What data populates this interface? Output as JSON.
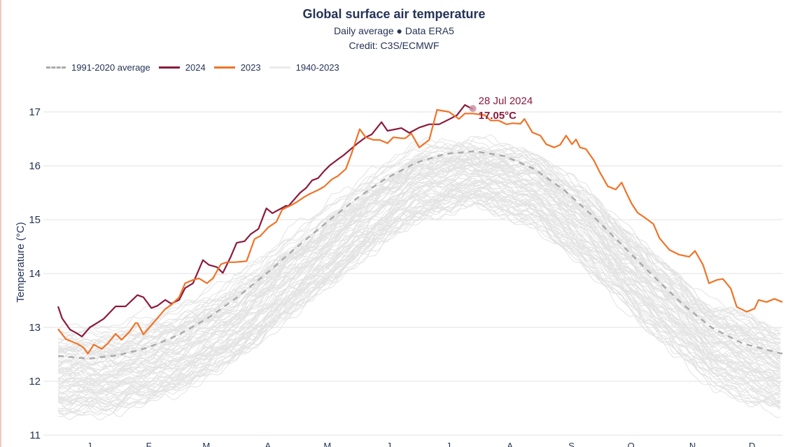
{
  "chart_data": {
    "type": "line",
    "title": "Global surface air temperature",
    "subtitle": "Daily average ● Data ERA5",
    "credit": "Credit: C3S/ECMWF",
    "xlabel": "",
    "ylabel": "Temperature (°C)",
    "ylim": [
      11,
      17.5
    ],
    "yticks": [
      11,
      12,
      13,
      14,
      15,
      16,
      17
    ],
    "xlim": [
      0,
      365
    ],
    "xtick_labels": [
      "J",
      "F",
      "M",
      "A",
      "M",
      "J",
      "J",
      "A",
      "S",
      "O",
      "N",
      "D"
    ],
    "xtick_days": [
      15,
      45,
      74,
      105,
      135,
      166,
      196,
      227,
      258,
      288,
      319,
      349
    ],
    "grid": true,
    "legend_position": "top-left",
    "legend": [
      {
        "label": "1991-2020 average",
        "color": "#aaaaaa",
        "style": "dashed"
      },
      {
        "label": "2024",
        "color": "#8b1a3c",
        "style": "solid"
      },
      {
        "label": "2023",
        "color": "#f07327",
        "style": "solid"
      },
      {
        "label": "1940-2023",
        "color": "#e3e3e3",
        "style": "solid"
      }
    ],
    "annotation": {
      "date": "28 Jul 2024",
      "value": "17.05°C",
      "day": 209,
      "temp": 17.05
    },
    "series": [
      {
        "name": "1991-2020 average",
        "color": "#aaaaaa",
        "x": [
          0,
          15,
          30,
          45,
          60,
          75,
          90,
          105,
          120,
          135,
          150,
          165,
          180,
          195,
          210,
          225,
          240,
          255,
          270,
          285,
          300,
          315,
          330,
          345,
          365
        ],
        "y": [
          12.47,
          12.42,
          12.48,
          12.62,
          12.85,
          13.16,
          13.55,
          14.0,
          14.48,
          14.94,
          15.38,
          15.76,
          16.05,
          16.22,
          16.27,
          16.18,
          15.94,
          15.55,
          15.05,
          14.5,
          13.95,
          13.42,
          12.98,
          12.7,
          12.51
        ]
      },
      {
        "name": "2024",
        "color": "#8b1a3c",
        "x": [
          0,
          2,
          6,
          9,
          12,
          16,
          20,
          23,
          29,
          34,
          40,
          43,
          47,
          50,
          54,
          57,
          61,
          64,
          68,
          73,
          76,
          80,
          83,
          87,
          90,
          94,
          97,
          101,
          104,
          105,
          108,
          111,
          115,
          116,
          122,
          125,
          128,
          131,
          134,
          137,
          141,
          144,
          151,
          155,
          158,
          163,
          166,
          173,
          177,
          182,
          187,
          192,
          198,
          201,
          205,
          209
        ],
        "y": [
          13.39,
          13.17,
          12.96,
          12.9,
          12.83,
          13.0,
          13.09,
          13.16,
          13.39,
          13.39,
          13.6,
          13.56,
          13.36,
          13.4,
          13.51,
          13.44,
          13.51,
          13.73,
          13.82,
          14.25,
          14.16,
          14.12,
          14.01,
          14.31,
          14.57,
          14.6,
          14.73,
          14.83,
          15.12,
          15.21,
          15.12,
          15.18,
          15.26,
          15.25,
          15.5,
          15.59,
          15.73,
          15.77,
          15.9,
          16.01,
          16.12,
          16.2,
          16.42,
          16.53,
          16.58,
          16.81,
          16.65,
          16.7,
          16.61,
          16.71,
          16.77,
          16.77,
          16.88,
          16.94,
          17.13,
          17.05
        ]
      },
      {
        "name": "2023",
        "color": "#f07327",
        "x": [
          0,
          4,
          10,
          13,
          15,
          18,
          22,
          25,
          29,
          32,
          36,
          39,
          40,
          43,
          47,
          50,
          54,
          57,
          61,
          64,
          68,
          71,
          75,
          78,
          82,
          85,
          89,
          92,
          95,
          99,
          102,
          106,
          110,
          113,
          117,
          120,
          124,
          127,
          131,
          134,
          138,
          141,
          145,
          148,
          152,
          155,
          159,
          162,
          166,
          169,
          173,
          175,
          178,
          182,
          187,
          191,
          197,
          202,
          205,
          209,
          215,
          218,
          222,
          226,
          229,
          233,
          235,
          239,
          243,
          246,
          250,
          253,
          256,
          259,
          261,
          263,
          266,
          270,
          273,
          277,
          281,
          284,
          287,
          289,
          292,
          296,
          300,
          303,
          308,
          313,
          318,
          321,
          325,
          328,
          332,
          335,
          339,
          342,
          347,
          351,
          353,
          357,
          361,
          365
        ],
        "y": [
          12.97,
          12.78,
          12.69,
          12.62,
          12.51,
          12.68,
          12.6,
          12.7,
          12.88,
          12.77,
          12.92,
          13.08,
          13.08,
          12.87,
          13.04,
          13.17,
          13.34,
          13.42,
          13.56,
          13.82,
          13.88,
          13.91,
          13.82,
          13.91,
          14.17,
          14.21,
          14.21,
          14.22,
          14.23,
          14.64,
          14.7,
          14.86,
          14.96,
          15.19,
          15.26,
          15.32,
          15.42,
          15.48,
          15.55,
          15.61,
          15.75,
          15.81,
          15.94,
          16.24,
          16.68,
          16.53,
          16.48,
          16.48,
          16.42,
          16.53,
          16.51,
          16.51,
          16.6,
          16.34,
          16.48,
          17.04,
          17.0,
          16.87,
          16.97,
          16.97,
          16.94,
          16.84,
          16.84,
          16.77,
          16.79,
          16.78,
          16.87,
          16.62,
          16.56,
          16.4,
          16.34,
          16.39,
          16.56,
          16.4,
          16.49,
          16.34,
          16.31,
          16.1,
          15.88,
          15.62,
          15.56,
          15.69,
          15.45,
          15.3,
          15.13,
          15.03,
          14.92,
          14.66,
          14.44,
          14.35,
          14.31,
          14.42,
          14.16,
          13.82,
          13.88,
          13.9,
          13.72,
          13.38,
          13.29,
          13.35,
          13.51,
          13.47,
          13.53,
          13.47
        ]
      }
    ],
    "historical_band": {
      "name": "1940-2023",
      "color": "#e3e3e3",
      "years_count": 84,
      "lower_envelope": {
        "x": [
          0,
          30,
          60,
          90,
          120,
          150,
          180,
          210,
          240,
          270,
          300,
          330,
          365
        ],
        "y": [
          11.35,
          11.4,
          11.75,
          12.35,
          13.25,
          14.15,
          14.95,
          15.25,
          14.85,
          13.95,
          12.85,
          11.9,
          11.35
        ]
      },
      "upper_envelope": {
        "x": [
          0,
          30,
          60,
          90,
          120,
          150,
          180,
          210,
          240,
          270,
          300,
          330,
          365
        ],
        "y": [
          13.05,
          13.1,
          13.45,
          14.0,
          14.85,
          15.7,
          16.45,
          16.55,
          16.4,
          15.6,
          14.55,
          13.6,
          13.15
        ]
      }
    }
  }
}
